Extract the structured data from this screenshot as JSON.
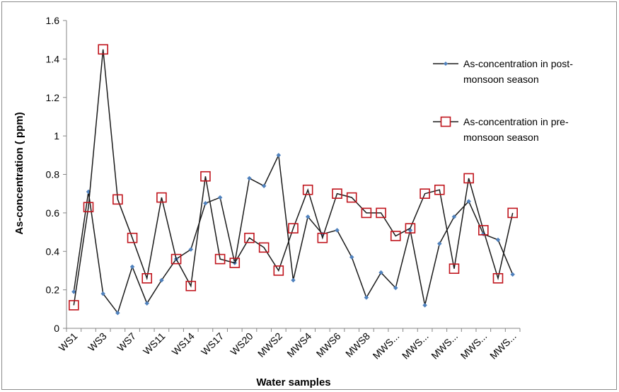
{
  "chart_data": {
    "type": "line",
    "title": "",
    "xlabel": "Water samples",
    "ylabel": "As-concentration ( ppm)",
    "ylim": [
      0,
      1.6
    ],
    "y_ticks": [
      "0",
      "0.2",
      "0.4",
      "0.6",
      "0.8",
      "1",
      "1.2",
      "1.4",
      "1.6"
    ],
    "y_tick_values": [
      0,
      0.2,
      0.4,
      0.6,
      0.8,
      1,
      1.2,
      1.4,
      1.6
    ],
    "grid": false,
    "legend_position": "right",
    "n_points": 31,
    "x_tick_labels": [
      "WS1",
      "WS3",
      "WS7",
      "WS11",
      "WS14",
      "WS17",
      "WS20",
      "MWS2",
      "MWS4",
      "MWS6",
      "MWS8",
      "MWS...",
      "MWS...",
      "MWS...",
      "MWS...",
      "MWS..."
    ],
    "x_tick_positions": [
      1,
      3,
      5,
      7,
      9,
      11,
      13,
      15,
      17,
      19,
      21,
      23,
      25,
      27,
      29,
      31
    ],
    "series": [
      {
        "name": "As-concentration in post-monsoon season",
        "name_lines": [
          "As-concentration in post-",
          "monsoon season"
        ],
        "color": "#1a1a1a",
        "marker_color": "#4f81bd",
        "marker": "diamond",
        "values": [
          0.19,
          0.71,
          0.18,
          0.08,
          0.32,
          0.13,
          0.25,
          0.36,
          0.41,
          0.65,
          0.68,
          0.34,
          0.78,
          0.74,
          0.9,
          0.25,
          0.58,
          0.49,
          0.51,
          0.37,
          0.16,
          0.29,
          0.21,
          0.51,
          0.12,
          0.44,
          0.58,
          0.66,
          0.49,
          0.46,
          0.28
        ]
      },
      {
        "name": "As-concentration in pre-monsoon season",
        "name_lines": [
          "As-concentration in pre-",
          "monsoon season"
        ],
        "color": "#1a1a1a",
        "marker_color": "#c0141c",
        "marker": "square",
        "values": [
          0.12,
          0.63,
          1.45,
          0.67,
          0.47,
          0.26,
          0.68,
          0.36,
          0.22,
          0.79,
          0.36,
          0.34,
          0.47,
          0.42,
          0.3,
          0.52,
          0.72,
          0.47,
          0.7,
          0.68,
          0.6,
          0.6,
          0.48,
          0.52,
          0.7,
          0.72,
          0.31,
          0.78,
          0.51,
          0.26,
          0.6
        ]
      }
    ]
  }
}
